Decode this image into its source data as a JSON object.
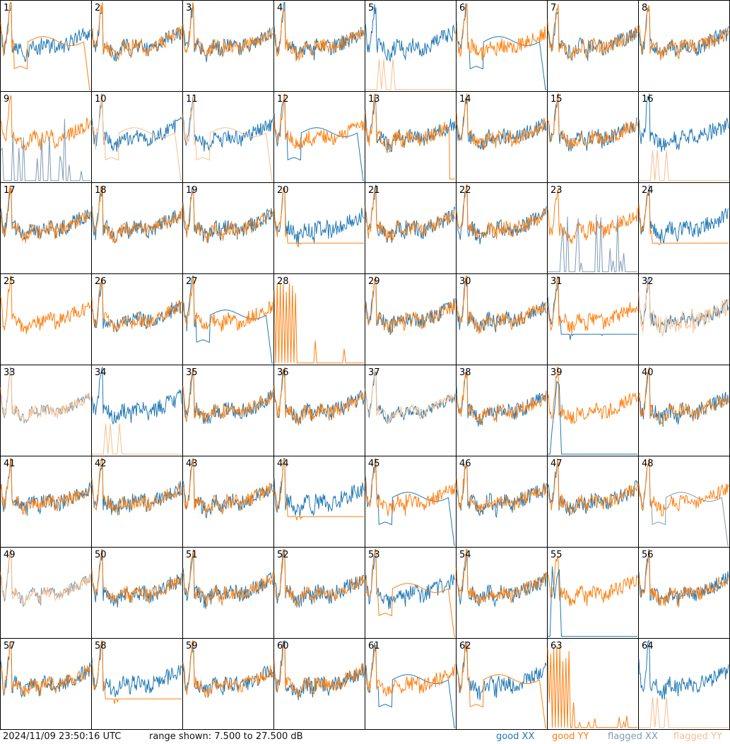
{
  "chart_data": {
    "type": "line",
    "panel_grid": "8x8",
    "panels": [
      "1",
      "2",
      "3",
      "4",
      "5",
      "6",
      "7",
      "8",
      "9",
      "10",
      "11",
      "12",
      "13",
      "14",
      "15",
      "16",
      "17",
      "18",
      "19",
      "20",
      "21",
      "22",
      "23",
      "24",
      "25",
      "26",
      "27",
      "28",
      "29",
      "30",
      "31",
      "32",
      "33",
      "34",
      "35",
      "36",
      "37",
      "38",
      "39",
      "40",
      "41",
      "42",
      "43",
      "44",
      "45",
      "46",
      "47",
      "48",
      "49",
      "50",
      "51",
      "52",
      "53",
      "54",
      "55",
      "56",
      "57",
      "58",
      "59",
      "60",
      "61",
      "62",
      "63",
      "64"
    ],
    "ylim": [
      7.5,
      27.5
    ],
    "yunit": "dB",
    "series": [
      {
        "name": "good XX",
        "color": "#1f77b4"
      },
      {
        "name": "good YY",
        "color": "#ff7f0e"
      },
      {
        "name": "flagged XX",
        "color": "#7f9bb5"
      },
      {
        "name": "flagged YY",
        "color": "#f6c08f"
      }
    ],
    "panel_styles": {
      "1": "dipYY",
      "5": "xOnlyDrop",
      "6": "dipXX",
      "9": "flagXSpikes",
      "10": "flagYYdip",
      "11": "flagYYdip",
      "12": "dipXX",
      "13": "dropYY",
      "16": "xOnlyDrop",
      "20": "lowYY",
      "23": "flagXSpikes",
      "24": "lowYY",
      "25": "yOnly",
      "27": "dipXX",
      "28": "spikesOnly",
      "31": "lowXX",
      "32": "flagYYspiky",
      "33": "flagBoth",
      "34": "xOnlyDrop",
      "37": "flagYY",
      "39": "yOnlySpikeX",
      "44": "lowYY",
      "45": "dipXX",
      "48": "flagXX",
      "49": "flagBoth",
      "53": "dipYY",
      "55": "yOnlySpikeX",
      "58": "lowYY",
      "61": "dipXX",
      "62": "dipYY",
      "63": "spikesOnly",
      "64": "xOnlyDrop"
    }
  },
  "footer": {
    "timestamp": "2024/11/09 23:50:16 UTC",
    "range": "range shown: 7.500 to 27.500 dB",
    "legend": {
      "good_xx": "good XX",
      "good_yy": "good YY",
      "flagged_xx": "flagged XX",
      "flagged_yy": "flagged YY"
    }
  }
}
